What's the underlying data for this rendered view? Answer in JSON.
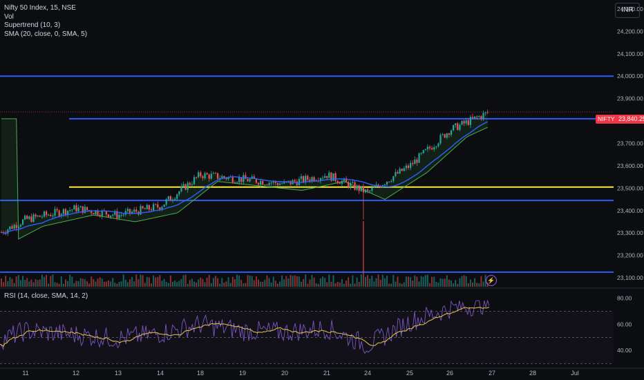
{
  "header": {
    "symbol": "Nifty 50 Index, 15, NSE",
    "vol": "Vol",
    "supertrend": "Supertrend (10, 3)",
    "sma": "SMA (20, close, 0, SMA, 5)",
    "currency": "INR"
  },
  "rsi_legend": "RSI (14, close, SMA, 14, 2)",
  "last_price": {
    "ticker": "NIFTY",
    "value": "23,840.25",
    "price": 23840.25
  },
  "colors": {
    "background": "#0c0d10",
    "up": "#26a69a",
    "down": "#ef5350",
    "sma": "#2962ff",
    "level_blue": "#2e5bff",
    "level_yellow": "#ffeb3b",
    "rsi": "#7e57c2",
    "rsi_ma": "#e6c84a",
    "supertrend_up": "#4caf50",
    "supertrend_down": "#ef5350"
  },
  "chart_data": {
    "type": "candlestick",
    "x_ticks": [
      "11",
      "12",
      "13",
      "14",
      "18",
      "19",
      "20",
      "21",
      "24",
      "25",
      "26",
      "27",
      "28",
      "Jul"
    ],
    "price_axis": {
      "ticks": [
        "24,300.00",
        "24,200.00",
        "24,100.00",
        "24,000.00",
        "23,900.00",
        "23,800.00",
        "23,700.00",
        "23,600.00",
        "23,500.00",
        "23,400.00",
        "23,300.00",
        "23,200.00",
        "23,100.00"
      ],
      "values": [
        24300,
        24200,
        24100,
        24000,
        23900,
        23800,
        23700,
        23600,
        23500,
        23400,
        23300,
        23200,
        23100
      ],
      "ylim": [
        23060,
        24340
      ]
    },
    "horizontal_levels": [
      {
        "price": 24000,
        "color": "blue"
      },
      {
        "price": 23810,
        "color": "blue"
      },
      {
        "price": 23505,
        "color": "yellow"
      },
      {
        "price": 23445,
        "color": "blue"
      },
      {
        "price": 23125,
        "color": "blue"
      }
    ],
    "close_path": [
      {
        "day": "10",
        "close": 23300
      },
      {
        "day": "11",
        "close": 23360
      },
      {
        "day": "12",
        "close": 23410
      },
      {
        "day": "13",
        "close": 23380
      },
      {
        "day": "14",
        "close": 23420
      },
      {
        "day": "18",
        "close": 23560
      },
      {
        "day": "19",
        "close": 23540
      },
      {
        "day": "20",
        "close": 23520
      },
      {
        "day": "21",
        "close": 23560
      },
      {
        "day": "24",
        "close": 23480
      },
      {
        "day": "25",
        "close": 23600
      },
      {
        "day": "26",
        "close": 23760
      },
      {
        "day": "27",
        "close": 23840
      }
    ],
    "rsi": {
      "ticks": [
        "80.00",
        "60.00",
        "40.00"
      ],
      "values": [
        80,
        60,
        40
      ],
      "ylim": [
        28,
        86
      ],
      "levels": [
        70,
        50,
        30
      ],
      "series": [
        {
          "day": "10",
          "rsi": 48
        },
        {
          "day": "11",
          "rsi": 55
        },
        {
          "day": "12",
          "rsi": 52
        },
        {
          "day": "13",
          "rsi": 49
        },
        {
          "day": "14",
          "rsi": 53
        },
        {
          "day": "18",
          "rsi": 60
        },
        {
          "day": "19",
          "rsi": 55
        },
        {
          "day": "20",
          "rsi": 54
        },
        {
          "day": "21",
          "rsi": 57
        },
        {
          "day": "24",
          "rsi": 44
        },
        {
          "day": "25",
          "rsi": 62
        },
        {
          "day": "26",
          "rsi": 72
        },
        {
          "day": "27",
          "rsi": 76
        }
      ]
    }
  }
}
